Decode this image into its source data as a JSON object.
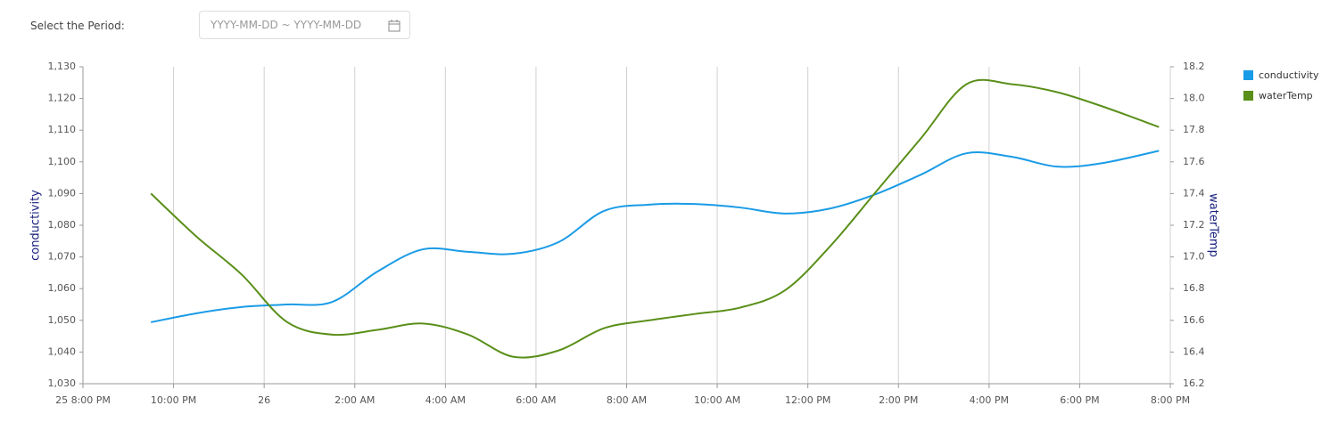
{
  "filter": {
    "label": "Select the Period:",
    "placeholder": "YYYY-MM-DD ~ YYYY-MM-DD"
  },
  "chart_data": {
    "type": "line",
    "y_label": "conductivity",
    "y2_label": "waterTemp",
    "x": [
      "25 21:30",
      "25 22:30",
      "25 23:30",
      "26 00:30",
      "26 01:30",
      "26 02:30",
      "26 03:30",
      "26 04:30",
      "26 05:30",
      "26 06:30",
      "26 07:30",
      "26 08:30",
      "26 09:30",
      "26 10:30",
      "26 11:30",
      "26 12:30",
      "26 13:30",
      "26 14:30",
      "26 15:30",
      "26 16:30",
      "26 17:30",
      "26 18:30",
      "26 19:45"
    ],
    "series": [
      {
        "name": "conductivity",
        "color": "#1a9be6",
        "axis": "y",
        "values": [
          1049.4,
          1052.2,
          1054.2,
          1055.0,
          1055.8,
          1065.4,
          1072.4,
          1071.6,
          1071.0,
          1074.7,
          1084.5,
          1086.5,
          1086.7,
          1085.6,
          1083.7,
          1085.3,
          1089.8,
          1096.0,
          1102.7,
          1101.6,
          1098.5,
          1099.6,
          1103.5
        ]
      },
      {
        "name": "waterTemp",
        "color": "#5a8f1a",
        "axis": "y2",
        "values": [
          17.4,
          17.13,
          16.89,
          16.59,
          16.51,
          16.54,
          16.58,
          16.51,
          16.37,
          16.41,
          16.55,
          16.6,
          16.64,
          16.68,
          16.79,
          17.07,
          17.41,
          17.75,
          18.09,
          18.09,
          18.04,
          17.95,
          17.82
        ]
      }
    ],
    "xlim": [
      "25 20:00",
      "26 20:00"
    ],
    "xticks": [
      {
        "value": "25 20:00",
        "label": "25 8:00 PM"
      },
      {
        "value": "25 22:00",
        "label": "10:00 PM"
      },
      {
        "value": "26 00:00",
        "label": "26"
      },
      {
        "value": "26 02:00",
        "label": "2:00 AM"
      },
      {
        "value": "26 04:00",
        "label": "4:00 AM"
      },
      {
        "value": "26 06:00",
        "label": "6:00 AM"
      },
      {
        "value": "26 08:00",
        "label": "8:00 AM"
      },
      {
        "value": "26 10:00",
        "label": "10:00 AM"
      },
      {
        "value": "26 12:00",
        "label": "12:00 PM"
      },
      {
        "value": "26 14:00",
        "label": "2:00 PM"
      },
      {
        "value": "26 16:00",
        "label": "4:00 PM"
      },
      {
        "value": "26 18:00",
        "label": "6:00 PM"
      },
      {
        "value": "26 20:00",
        "label": "8:00 PM"
      }
    ],
    "ylim": [
      1030,
      1130
    ],
    "yticks": [
      {
        "value": 1030,
        "label": "1,030"
      },
      {
        "value": 1040,
        "label": "1,040"
      },
      {
        "value": 1050,
        "label": "1,050"
      },
      {
        "value": 1060,
        "label": "1,060"
      },
      {
        "value": 1070,
        "label": "1,070"
      },
      {
        "value": 1080,
        "label": "1,080"
      },
      {
        "value": 1090,
        "label": "1,090"
      },
      {
        "value": 1100,
        "label": "1,100"
      },
      {
        "value": 1110,
        "label": "1,110"
      },
      {
        "value": 1120,
        "label": "1,120"
      },
      {
        "value": 1130,
        "label": "1,130"
      }
    ],
    "y2lim": [
      16.2,
      18.2
    ],
    "y2ticks": [
      16.2,
      16.4,
      16.6,
      16.8,
      {
        "value": 17,
        "label": "17.0"
      },
      17.2,
      17.4,
      17.6,
      17.8,
      {
        "value": 18,
        "label": "18.0"
      },
      18.2
    ],
    "grid": "x",
    "legend": "top-right"
  }
}
